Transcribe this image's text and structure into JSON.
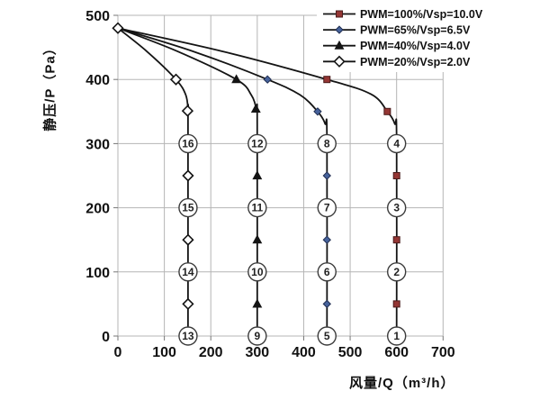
{
  "chart_data": {
    "type": "line",
    "title": "",
    "xlabel": "风量/Q（m³/h）",
    "ylabel": "静压/P（Pa）",
    "xlim": [
      0,
      700
    ],
    "ylim": [
      0,
      500
    ],
    "xticks": [
      0,
      100,
      200,
      300,
      400,
      500,
      600,
      700
    ],
    "yticks": [
      0,
      100,
      200,
      300,
      400,
      500
    ],
    "grid": true,
    "legend_position": "top-right",
    "colors": {
      "line": "#141414",
      "grid": "#b5b5b5",
      "axis": "#9b9b9b",
      "tick": "#777777",
      "text": "#111111",
      "legend_background": "#ffffff",
      "marker_red": "#943634",
      "marker_blue": "#46629b",
      "marker_black": "#141414",
      "marker_open_fill": "#ffffff"
    },
    "start_marker": {
      "q": 0,
      "p": 480,
      "marker": "diamond-open"
    },
    "series": [
      {
        "name": "PWM=100%/Vsp=10.0V",
        "pwm": "100%",
        "vsp": "10.0V",
        "marker": "square",
        "marker_color": "#943634",
        "marker_edge": "#4a1a1a",
        "column_q": 600,
        "curve_points": [
          [
            0,
            480
          ],
          [
            230,
            443
          ],
          [
            450,
            400
          ],
          [
            545,
            377
          ],
          [
            580,
            350
          ],
          [
            596,
            331
          ],
          [
            600,
            308
          ],
          [
            600,
            0
          ]
        ],
        "marker_points": [
          [
            450,
            400
          ],
          [
            580,
            350
          ],
          [
            600,
            250
          ],
          [
            600,
            150
          ],
          [
            600,
            50
          ]
        ],
        "numbered_points": [
          {
            "label": "4",
            "q": 600,
            "p": 300
          },
          {
            "label": "3",
            "q": 600,
            "p": 200
          },
          {
            "label": "2",
            "q": 600,
            "p": 100
          },
          {
            "label": "1",
            "q": 600,
            "p": 0
          }
        ]
      },
      {
        "name": "PWM=65%/Vsp=6.5V",
        "pwm": "65%",
        "vsp": "6.5V",
        "marker": "diamond-small",
        "marker_color": "#46629b",
        "marker_edge": "#1f2d50",
        "column_q": 450,
        "curve_points": [
          [
            0,
            480
          ],
          [
            165,
            443
          ],
          [
            322,
            400
          ],
          [
            392,
            376
          ],
          [
            430,
            350
          ],
          [
            446,
            331
          ],
          [
            450,
            308
          ],
          [
            450,
            0
          ]
        ],
        "marker_points": [
          [
            322,
            400
          ],
          [
            430,
            350
          ],
          [
            450,
            250
          ],
          [
            450,
            150
          ],
          [
            450,
            50
          ]
        ],
        "numbered_points": [
          {
            "label": "8",
            "q": 450,
            "p": 300
          },
          {
            "label": "7",
            "q": 450,
            "p": 200
          },
          {
            "label": "6",
            "q": 450,
            "p": 100
          },
          {
            "label": "5",
            "q": 450,
            "p": 0
          }
        ]
      },
      {
        "name": "PWM=40%/Vsp=4.0V",
        "pwm": "40%",
        "vsp": "4.0V",
        "marker": "triangle",
        "marker_color": "#141414",
        "marker_edge": "#141414",
        "column_q": 300,
        "curve_points": [
          [
            0,
            480
          ],
          [
            128,
            444
          ],
          [
            255,
            400
          ],
          [
            287,
            376
          ],
          [
            298,
            353
          ],
          [
            300,
            330
          ],
          [
            300,
            0
          ]
        ],
        "marker_points": [
          [
            255,
            400
          ],
          [
            297,
            354
          ],
          [
            300,
            250
          ],
          [
            300,
            150
          ],
          [
            300,
            50
          ]
        ],
        "numbered_points": [
          {
            "label": "12",
            "q": 300,
            "p": 300
          },
          {
            "label": "11",
            "q": 300,
            "p": 200
          },
          {
            "label": "10",
            "q": 300,
            "p": 100
          },
          {
            "label": "9",
            "q": 300,
            "p": 0
          }
        ]
      },
      {
        "name": "PWM=20%/Vsp=2.0V",
        "pwm": "20%",
        "vsp": "2.0V",
        "marker": "diamond-open",
        "marker_color": "#ffffff",
        "marker_edge": "#141414",
        "column_q": 151,
        "curve_points": [
          [
            0,
            480
          ],
          [
            62,
            444
          ],
          [
            125,
            400
          ],
          [
            146,
            376
          ],
          [
            151,
            352
          ],
          [
            151,
            330
          ],
          [
            151,
            0
          ]
        ],
        "marker_points": [
          [
            125,
            400
          ],
          [
            150,
            351
          ],
          [
            151,
            250
          ],
          [
            151,
            150
          ],
          [
            151,
            50
          ]
        ],
        "numbered_points": [
          {
            "label": "16",
            "q": 151,
            "p": 300
          },
          {
            "label": "15",
            "q": 151,
            "p": 200
          },
          {
            "label": "14",
            "q": 151,
            "p": 100
          },
          {
            "label": "13",
            "q": 151,
            "p": 0
          }
        ]
      }
    ]
  }
}
